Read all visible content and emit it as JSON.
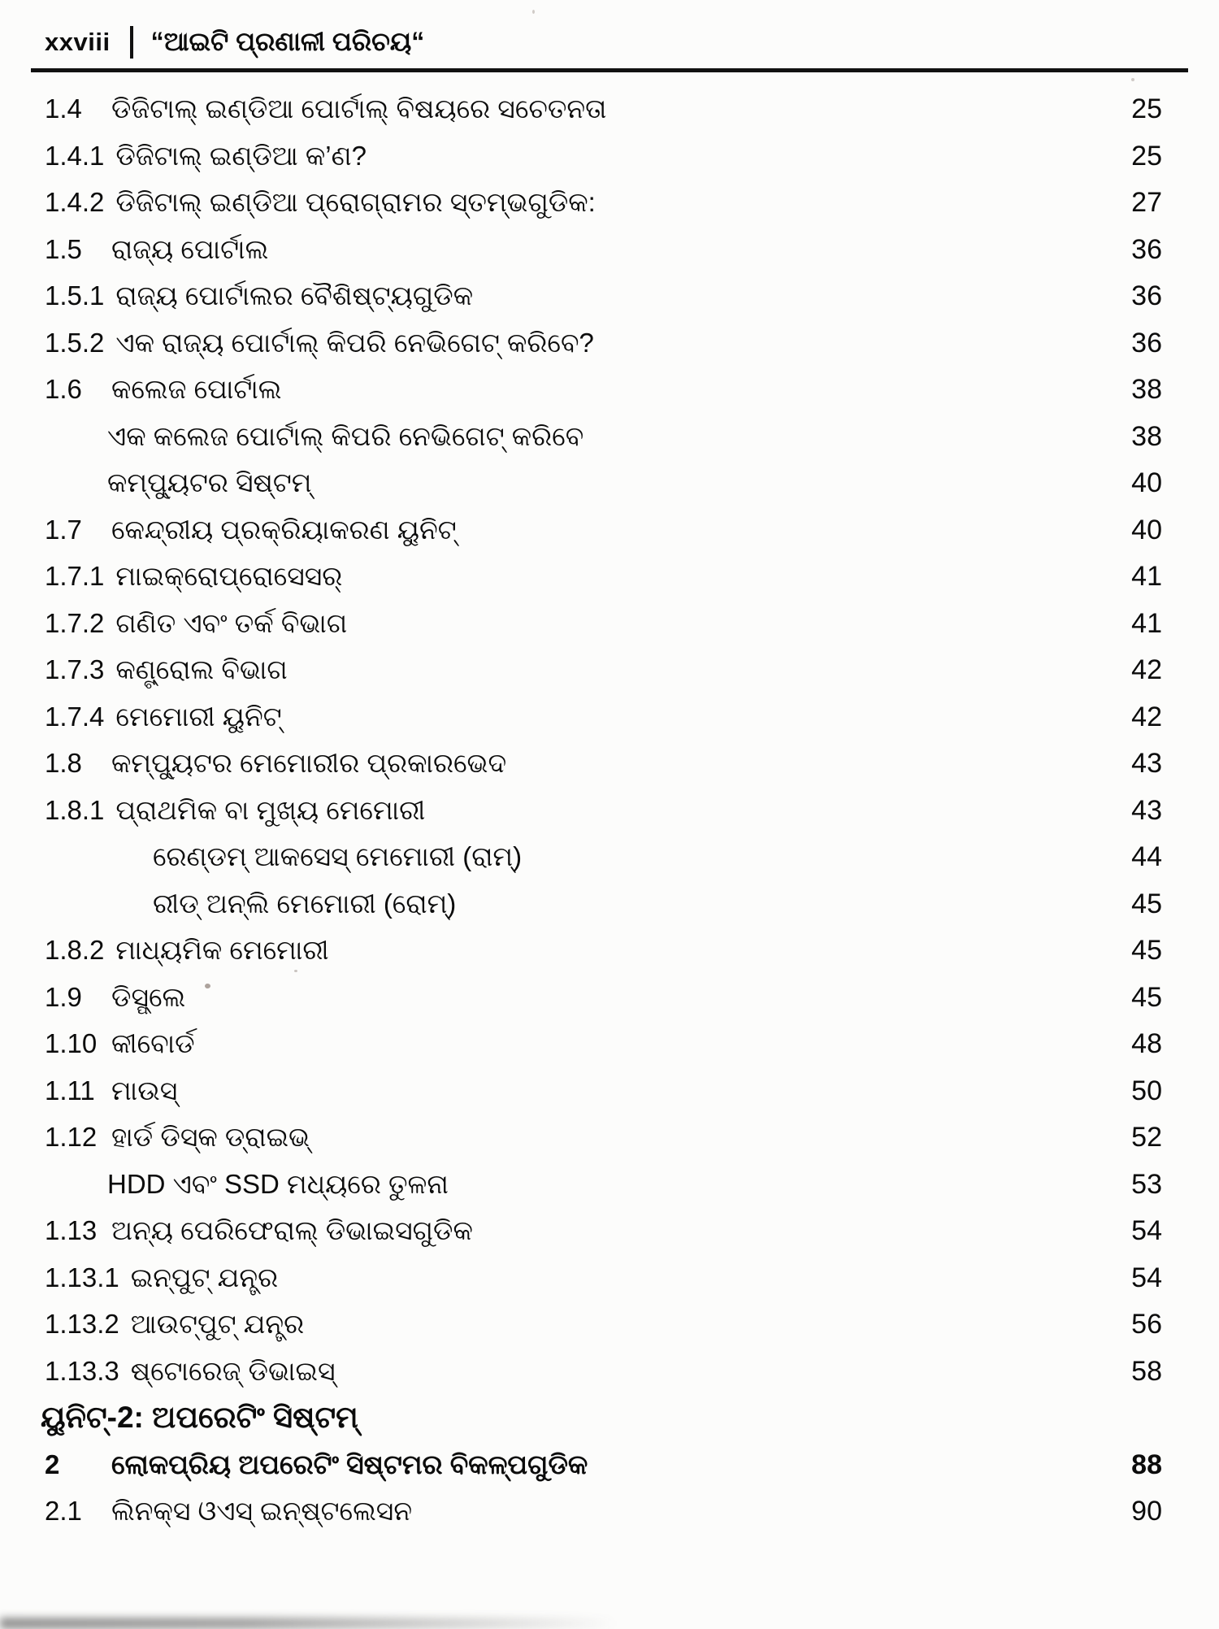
{
  "header": {
    "page_label": "xxviii",
    "separator": "|",
    "book_title": "“ଆଇଟି ପ୍ରଣାଳୀ ପରିଚୟ“"
  },
  "toc": {
    "entries": [
      {
        "num": "1.4",
        "title": "ଡିଜିଟାଲ୍ ଇଣ୍ଡିଆ ପୋର୍ଟାଲ୍ ବିଷୟରେ ସଚେତନତା",
        "page": "25",
        "indent": 0,
        "bold": false,
        "unit_header": false
      },
      {
        "num": "1.4.1",
        "title": "ଡିଜିଟାଲ୍ ଇଣ୍ଡିଆ କ’ଣ?",
        "page": "25",
        "indent": 0,
        "bold": false,
        "unit_header": false
      },
      {
        "num": "1.4.2",
        "title": "ଡିଜିଟାଲ୍ ଇଣ୍ଡିଆ ପ୍ରୋଗ୍ରାମର ସ୍ତମ୍ଭଗୁଡିକ:",
        "page": "27",
        "indent": 0,
        "bold": false,
        "unit_header": false
      },
      {
        "num": "1.5",
        "title": "ରାଜ୍ୟ ପୋର୍ଟାଲ",
        "page": "36",
        "indent": 0,
        "bold": false,
        "unit_header": false
      },
      {
        "num": "1.5.1",
        "title": "ରାଜ୍ୟ ପୋର୍ଟାଲର ବୈଶିଷ୍ଟ୍ୟଗୁଡିକ",
        "page": "36",
        "indent": 0,
        "bold": false,
        "unit_header": false
      },
      {
        "num": "1.5.2",
        "title": "ଏକ ରାଜ୍ୟ ପୋର୍ଟାଲ୍ କିପରି ନେଭିଗେଟ୍ କରିବେ?",
        "page": "36",
        "indent": 0,
        "bold": false,
        "unit_header": false
      },
      {
        "num": "1.6",
        "title": "କଲେଜ ପୋର୍ଟାଲ",
        "page": "38",
        "indent": 0,
        "bold": false,
        "unit_header": false
      },
      {
        "num": "",
        "title": "ଏକ କଲେଜ ପୋର୍ଟାଲ୍ କିପରି ନେଭିଗେଟ୍ କରିବେ",
        "page": "38",
        "indent": 1,
        "bold": false,
        "unit_header": false
      },
      {
        "num": "",
        "title": "କମ୍ପ୍ୟୁଟର ସିଷ୍ଟମ୍",
        "page": "40",
        "indent": 1,
        "bold": false,
        "unit_header": false
      },
      {
        "num": "1.7",
        "title": "କେନ୍ଦ୍ରୀୟ ପ୍ରକ୍ରିୟାକରଣ ୟୁନିଟ୍",
        "page": "40",
        "indent": 0,
        "bold": false,
        "unit_header": false
      },
      {
        "num": "1.7.1",
        "title": "ମାଇକ୍ରୋପ୍ରୋସେସର୍",
        "page": "41",
        "indent": 0,
        "bold": false,
        "unit_header": false
      },
      {
        "num": "1.7.2",
        "title": "ଗଣିତ ଏବଂ ତର୍କ ବିଭାଗ",
        "page": "41",
        "indent": 0,
        "bold": false,
        "unit_header": false
      },
      {
        "num": "1.7.3",
        "title": "କଣ୍ଟ୍ରୋଲ ବିଭାଗ",
        "page": "42",
        "indent": 0,
        "bold": false,
        "unit_header": false
      },
      {
        "num": "1.7.4",
        "title": "ମେମୋରୀ ୟୁନିଟ୍",
        "page": "42",
        "indent": 0,
        "bold": false,
        "unit_header": false
      },
      {
        "num": "1.8",
        "title": "କମ୍ପ୍ୟୁଟର ମେମୋରୀର ପ୍ରକାରଭେଦ",
        "page": "43",
        "indent": 0,
        "bold": false,
        "unit_header": false
      },
      {
        "num": "1.8.1",
        "title": "ପ୍ରାଥମିକ ବା ମୁଖ୍ୟ ମେମୋରୀ",
        "page": "43",
        "indent": 0,
        "bold": false,
        "unit_header": false
      },
      {
        "num": "",
        "title": "ରେଣ୍ଡମ୍ ଆକସେସ୍ ମେମୋରୀ (ରାମ୍)",
        "page": "44",
        "indent": 2,
        "bold": false,
        "unit_header": false
      },
      {
        "num": "",
        "title": "ରୀଡ୍ ଅନ୍ଲି ମେମୋରୀ (ରୋମ୍)",
        "page": "45",
        "indent": 2,
        "bold": false,
        "unit_header": false
      },
      {
        "num": "1.8.2",
        "title": "ମାଧ୍ୟମିକ ମେମୋରୀ",
        "page": "45",
        "indent": 0,
        "bold": false,
        "unit_header": false
      },
      {
        "num": "1.9",
        "title": "ଡିସ୍ପ୍ଲେ",
        "page": "45",
        "indent": 0,
        "bold": false,
        "unit_header": false
      },
      {
        "num": "1.10",
        "title": "କୀବୋର୍ଡ",
        "page": "48",
        "indent": 0,
        "bold": false,
        "unit_header": false
      },
      {
        "num": "1.11",
        "title": "ମାଉସ୍",
        "page": "50",
        "indent": 0,
        "bold": false,
        "unit_header": false
      },
      {
        "num": "1.12",
        "title": "ହାର୍ଡ ଡିସ୍କ ଡ୍ରାଇଭ୍",
        "page": "52",
        "indent": 0,
        "bold": false,
        "unit_header": false
      },
      {
        "num": "",
        "title": "HDD ଏବଂ SSD ମଧ୍ୟରେ ତୁଳନା",
        "page": "53",
        "indent": 1,
        "bold": false,
        "unit_header": false
      },
      {
        "num": "1.13",
        "title": "ଅନ୍ୟ ପେରିଫେରାଲ୍ ଡିଭାଇସଗୁଡିକ",
        "page": "54",
        "indent": 0,
        "bold": false,
        "unit_header": false
      },
      {
        "num": "1.13.1",
        "title": "ଇନ୍ପୁଟ୍ ଯନ୍ତ୍ର",
        "page": "54",
        "indent": 0,
        "bold": false,
        "unit_header": false
      },
      {
        "num": "1.13.2",
        "title": "ଆଉଟ୍ପୁଟ୍ ଯନ୍ତ୍ର",
        "page": "56",
        "indent": 0,
        "bold": false,
        "unit_header": false
      },
      {
        "num": "1.13.3",
        "title": "ଷ୍ଟୋରେଜ୍ ଡିଭାଇସ୍",
        "page": "58",
        "indent": 0,
        "bold": false,
        "unit_header": false
      },
      {
        "num": "",
        "title": "ୟୁନିଟ୍-2: ଅପରେଟିଂ ସିଷ୍ଟମ୍",
        "page": "",
        "indent": 0,
        "bold": true,
        "unit_header": true
      },
      {
        "num": "2",
        "title": "ଲୋକପ୍ରିୟ ଅପରେଟିଂ ସିଷ୍ଟମର ବିକଳ୍ପଗୁଡିକ",
        "page": "88",
        "indent": 0,
        "bold": true,
        "unit_header": false
      },
      {
        "num": "2.1",
        "title": "ଲିନକ୍ସ ଓଏସ୍ ଇନ୍ଷ୍ଟଲେସନ",
        "page": "90",
        "indent": 0,
        "bold": false,
        "unit_header": false
      }
    ]
  }
}
